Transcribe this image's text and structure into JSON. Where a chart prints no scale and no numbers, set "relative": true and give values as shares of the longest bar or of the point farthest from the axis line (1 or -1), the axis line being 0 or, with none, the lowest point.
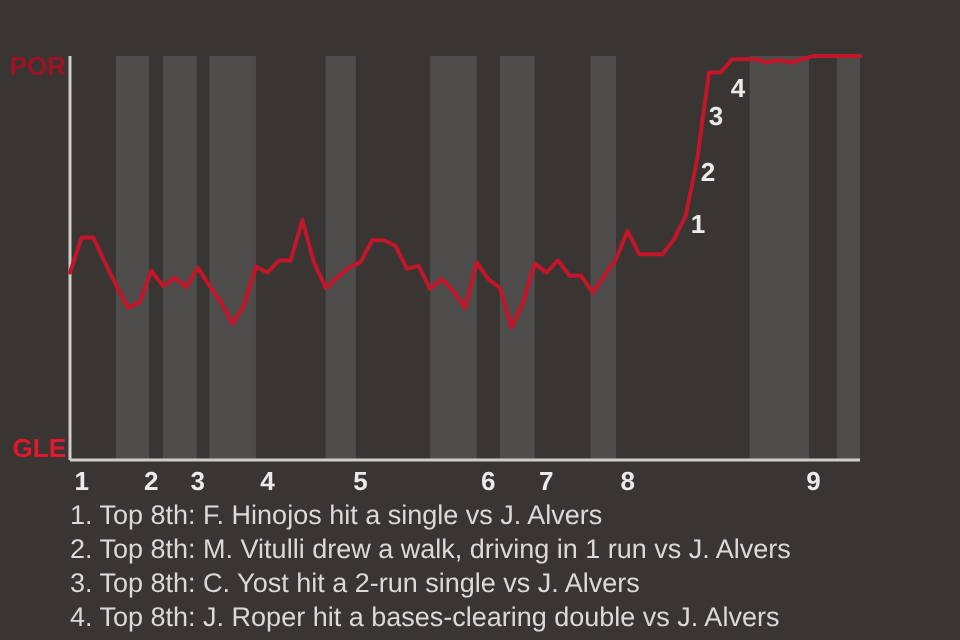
{
  "chart_data": {
    "type": "line",
    "relative": true,
    "categories": [
      null,
      "1",
      null,
      null,
      null,
      null,
      null,
      "2",
      null,
      null,
      null,
      "3",
      null,
      null,
      null,
      null,
      null,
      "4",
      null,
      null,
      null,
      null,
      null,
      null,
      null,
      "5",
      null,
      null,
      null,
      null,
      null,
      null,
      null,
      null,
      null,
      null,
      "6",
      null,
      null,
      null,
      null,
      "7",
      null,
      null,
      null,
      null,
      null,
      null,
      "8",
      null,
      null,
      null,
      null,
      null,
      null,
      null,
      null,
      null,
      null,
      null,
      null,
      null,
      null,
      null,
      "9",
      null,
      null,
      null,
      null
    ],
    "marker": "none",
    "line_style": "solid",
    "series": [
      {
        "color": "#c3162b",
        "values": [
          0.464,
          0.551,
          0.551,
          0.489,
          0.431,
          0.377,
          0.39,
          0.468,
          0.431,
          0.451,
          0.428,
          0.476,
          0.431,
          0.39,
          0.337,
          0.385,
          0.478,
          0.464,
          0.494,
          0.494,
          0.594,
          0.489,
          0.426,
          0.451,
          0.476,
          0.489,
          0.544,
          0.544,
          0.531,
          0.473,
          0.481,
          0.423,
          0.448,
          0.418,
          0.377,
          0.489,
          0.448,
          0.426,
          0.328,
          0.39,
          0.486,
          0.464,
          0.494,
          0.456,
          0.456,
          0.414,
          0.456,
          0.498,
          0.567,
          0.509,
          0.509,
          0.509,
          0.547,
          0.605,
          0.746,
          0.959,
          0.959,
          0.992,
          0.992,
          0.992,
          0.984,
          0.99,
          0.984,
          0.992,
          1,
          1,
          1,
          1,
          1
        ]
      }
    ],
    "annotations": [
      "POR",
      "GLE",
      "1",
      "2",
      "3",
      "4",
      "1. Top 8th: F. Hinojos hit a single vs J. Alvers",
      "2. Top 8th: M. Vitulli drew a walk, driving in 1 run vs J. Alvers",
      "3. Top 8th: C. Yost hit a 2-run single vs J. Alvers",
      "4. Top 8th: J. Roper hit a bases-clearing double vs J. Alvers"
    ]
  }
}
